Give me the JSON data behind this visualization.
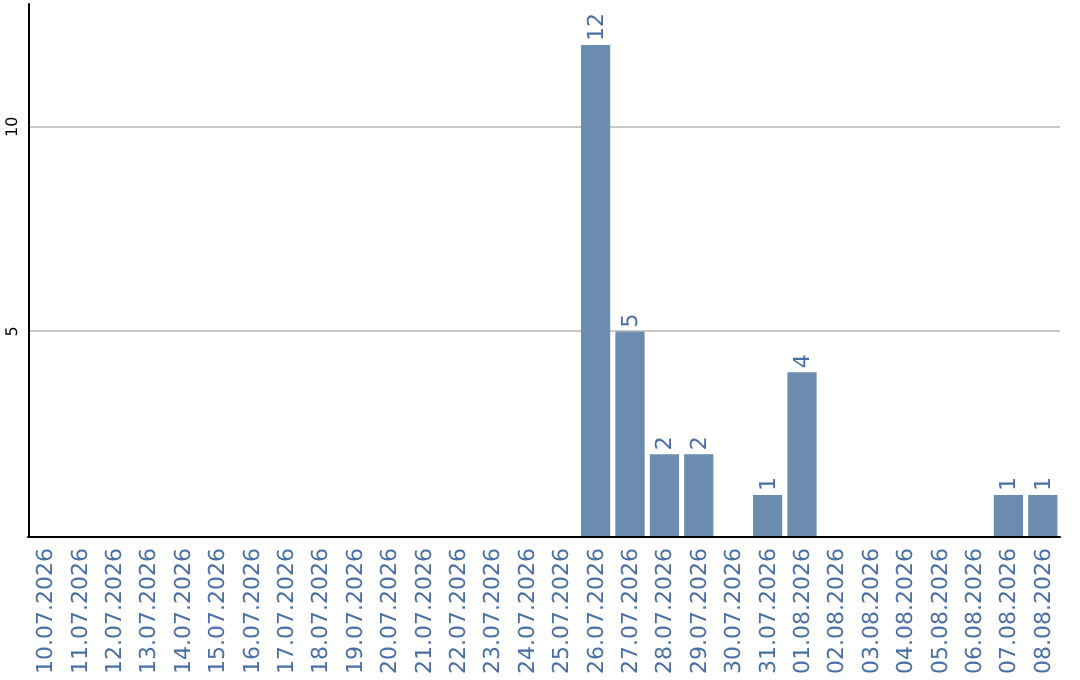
{
  "chart_data": {
    "type": "bar",
    "categories": [
      "10.07.2026",
      "11.07.2026",
      "12.07.2026",
      "13.07.2026",
      "14.07.2026",
      "15.07.2026",
      "16.07.2026",
      "17.07.2026",
      "18.07.2026",
      "19.07.2026",
      "20.07.2026",
      "21.07.2026",
      "22.07.2026",
      "23.07.2026",
      "24.07.2026",
      "25.07.2026",
      "26.07.2026",
      "27.07.2026",
      "28.07.2026",
      "29.07.2026",
      "30.07.2026",
      "31.07.2026",
      "01.08.2026",
      "02.08.2026",
      "03.08.2026",
      "04.08.2026",
      "05.08.2026",
      "06.08.2026",
      "07.08.2026",
      "08.08.2026"
    ],
    "values": [
      0,
      0,
      0,
      0,
      0,
      0,
      0,
      0,
      0,
      0,
      0,
      0,
      0,
      0,
      0,
      0,
      12,
      5,
      2,
      2,
      0,
      1,
      4,
      0,
      0,
      0,
      0,
      0,
      1,
      1
    ],
    "value_labels": [
      null,
      null,
      null,
      null,
      null,
      null,
      null,
      null,
      null,
      null,
      null,
      null,
      null,
      null,
      null,
      null,
      "12",
      "5",
      "2",
      "2",
      null,
      "1",
      "4",
      null,
      null,
      null,
      null,
      null,
      "1",
      "1"
    ],
    "color": "#6b8cae",
    "ylim": [
      0,
      13
    ],
    "yticks": [
      5,
      10
    ],
    "grid": "y"
  }
}
